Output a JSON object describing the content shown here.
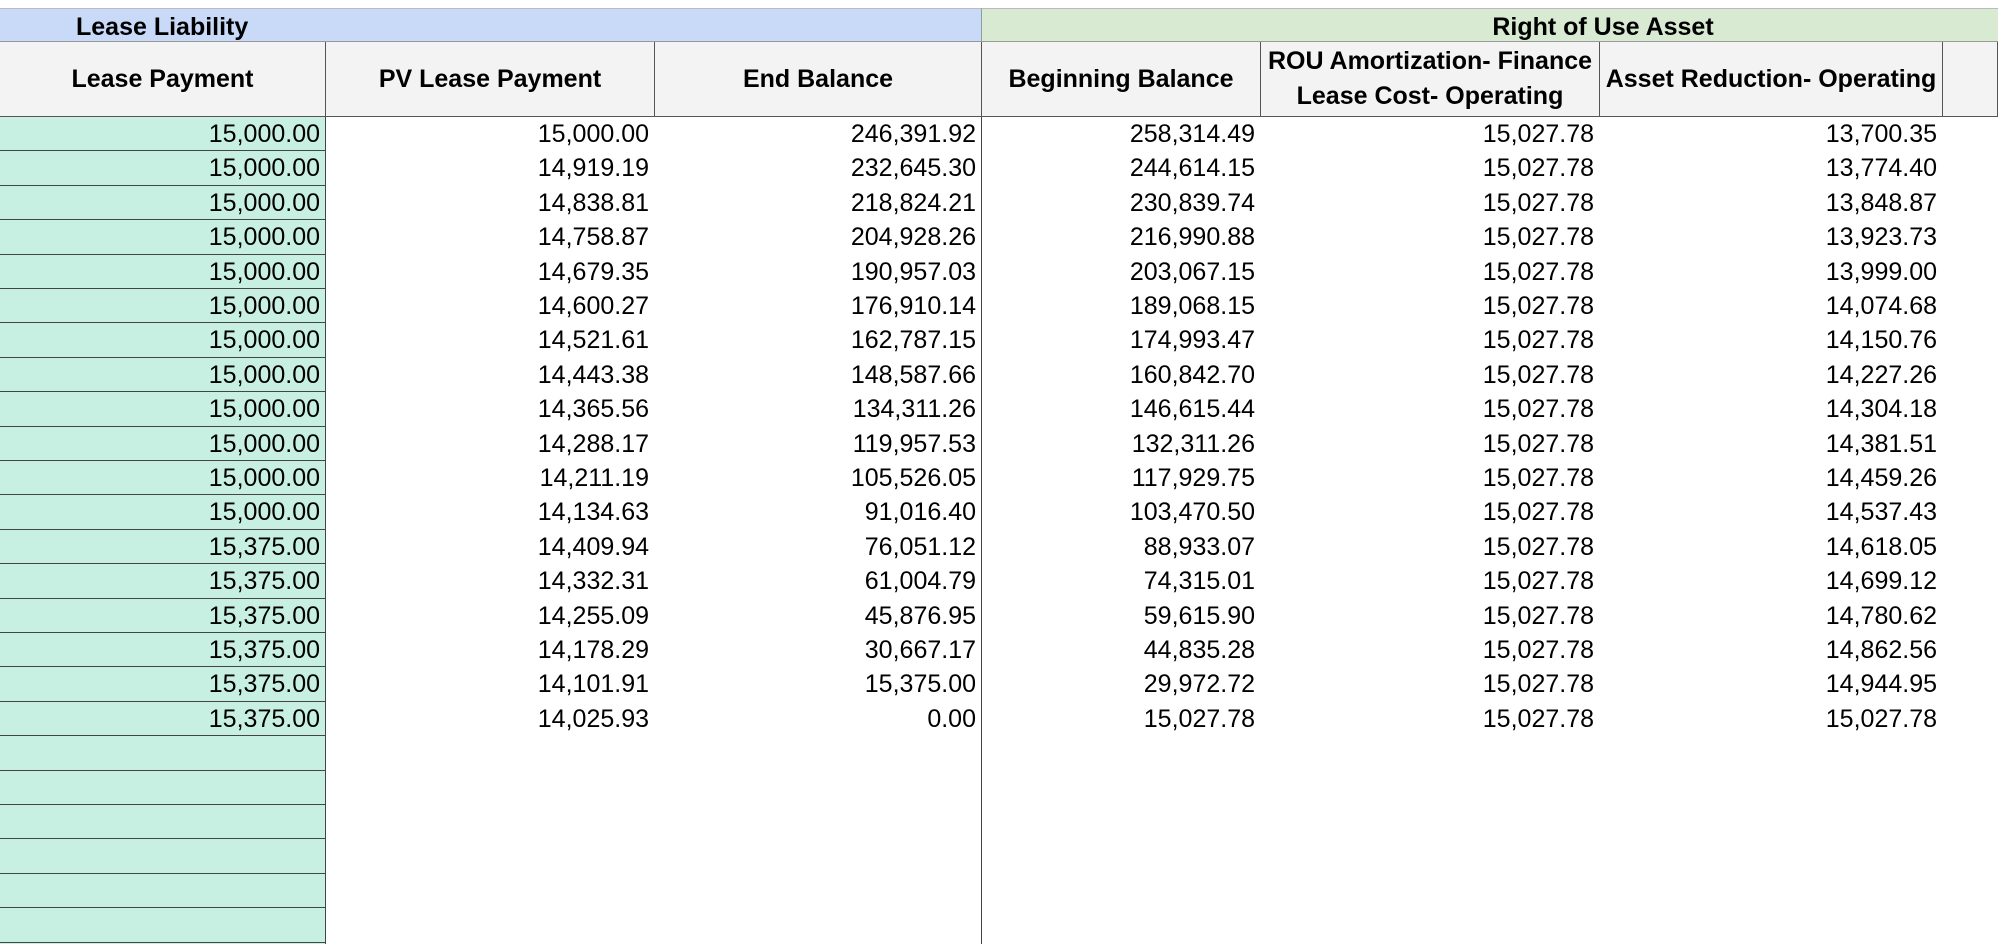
{
  "header": {
    "groups": [
      "Lease Liability",
      "Right of Use Asset"
    ]
  },
  "table": {
    "columns": [
      "Lease Payment",
      "PV Lease Payment",
      "End Balance",
      "Beginning Balance",
      "ROU Amortization- Finance Lease Cost- Operating",
      "Asset Reduction- Operating"
    ],
    "rows": [
      [
        "15,000.00",
        "15,000.00",
        "246,391.92",
        "258,314.49",
        "15,027.78",
        "13,700.35"
      ],
      [
        "15,000.00",
        "14,919.19",
        "232,645.30",
        "244,614.15",
        "15,027.78",
        "13,774.40"
      ],
      [
        "15,000.00",
        "14,838.81",
        "218,824.21",
        "230,839.74",
        "15,027.78",
        "13,848.87"
      ],
      [
        "15,000.00",
        "14,758.87",
        "204,928.26",
        "216,990.88",
        "15,027.78",
        "13,923.73"
      ],
      [
        "15,000.00",
        "14,679.35",
        "190,957.03",
        "203,067.15",
        "15,027.78",
        "13,999.00"
      ],
      [
        "15,000.00",
        "14,600.27",
        "176,910.14",
        "189,068.15",
        "15,027.78",
        "14,074.68"
      ],
      [
        "15,000.00",
        "14,521.61",
        "162,787.15",
        "174,993.47",
        "15,027.78",
        "14,150.76"
      ],
      [
        "15,000.00",
        "14,443.38",
        "148,587.66",
        "160,842.70",
        "15,027.78",
        "14,227.26"
      ],
      [
        "15,000.00",
        "14,365.56",
        "134,311.26",
        "146,615.44",
        "15,027.78",
        "14,304.18"
      ],
      [
        "15,000.00",
        "14,288.17",
        "119,957.53",
        "132,311.26",
        "15,027.78",
        "14,381.51"
      ],
      [
        "15,000.00",
        "14,211.19",
        "105,526.05",
        "117,929.75",
        "15,027.78",
        "14,459.26"
      ],
      [
        "15,000.00",
        "14,134.63",
        "91,016.40",
        "103,470.50",
        "15,027.78",
        "14,537.43"
      ],
      [
        "15,375.00",
        "14,409.94",
        "76,051.12",
        "88,933.07",
        "15,027.78",
        "14,618.05"
      ],
      [
        "15,375.00",
        "14,332.31",
        "61,004.79",
        "74,315.01",
        "15,027.78",
        "14,699.12"
      ],
      [
        "15,375.00",
        "14,255.09",
        "45,876.95",
        "59,615.90",
        "15,027.78",
        "14,780.62"
      ],
      [
        "15,375.00",
        "14,178.29",
        "30,667.17",
        "44,835.28",
        "15,027.78",
        "14,862.56"
      ],
      [
        "15,375.00",
        "14,101.91",
        "15,375.00",
        "29,972.72",
        "15,027.78",
        "14,944.95"
      ],
      [
        "15,375.00",
        "14,025.93",
        "0.00",
        "15,027.78",
        "15,027.78",
        "15,027.78"
      ]
    ]
  }
}
